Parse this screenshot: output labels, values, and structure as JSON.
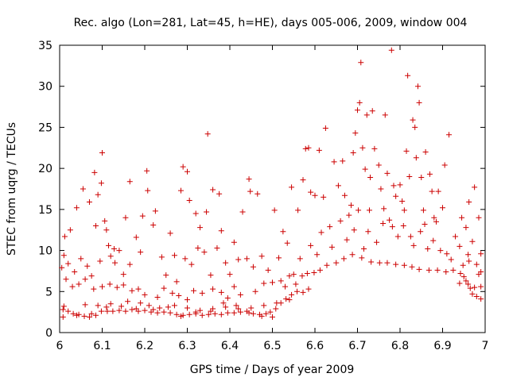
{
  "chart_data": {
    "type": "scatter",
    "title": "Rec. algo (Lon=281, Lat=45, h=HE), days 005-006, 2009, window 004",
    "xlabel": "GPS time / Days of year 2009",
    "ylabel": "STEC from uqrg / TECUs",
    "xlim": [
      6,
      7
    ],
    "ylim": [
      0,
      35
    ],
    "x_ticks": [
      6,
      6.1,
      6.2,
      6.3,
      6.4,
      6.5,
      6.6,
      6.7,
      6.8,
      6.9,
      7
    ],
    "y_ticks": [
      0,
      5,
      10,
      15,
      20,
      25,
      30,
      35
    ],
    "x_tick_labels": [
      "6",
      "6.1",
      "6.2",
      "6.3",
      "6.4",
      "6.5",
      "6.6",
      "6.7",
      "6.8",
      "6.9",
      "7"
    ],
    "y_tick_labels": [
      "0",
      "5",
      "10",
      "15",
      "20",
      "25",
      "30",
      "35"
    ],
    "marker": "plus",
    "marker_color": "#cc0000",
    "grid": false,
    "series": [
      {
        "name": "STEC",
        "points": [
          [
            6.012,
            11.7
          ],
          [
            6.025,
            12.5
          ],
          [
            6.04,
            15.2
          ],
          [
            6.055,
            17.5
          ],
          [
            6.07,
            15.9
          ],
          [
            6.082,
            19.5
          ],
          [
            6.09,
            16.8
          ],
          [
            6.098,
            18.2
          ],
          [
            6.1,
            21.9
          ],
          [
            6.106,
            13.6
          ],
          [
            6.115,
            10.6
          ],
          [
            6.128,
            10.2
          ],
          [
            6.155,
            14.0
          ],
          [
            6.165,
            18.4
          ],
          [
            6.195,
            14.2
          ],
          [
            6.205,
            19.7
          ],
          [
            6.207,
            17.3
          ],
          [
            6.225,
            14.8
          ],
          [
            6.26,
            12.1
          ],
          [
            6.27,
            9.4
          ],
          [
            6.285,
            17.3
          ],
          [
            6.29,
            20.2
          ],
          [
            6.3,
            19.6
          ],
          [
            6.305,
            16.1
          ],
          [
            6.32,
            14.5
          ],
          [
            6.33,
            12.8
          ],
          [
            6.345,
            14.7
          ],
          [
            6.348,
            24.2
          ],
          [
            6.36,
            17.4
          ],
          [
            6.375,
            16.9
          ],
          [
            6.38,
            12.4
          ],
          [
            6.41,
            11.0
          ],
          [
            6.43,
            14.7
          ],
          [
            6.445,
            18.7
          ],
          [
            6.448,
            17.2
          ],
          [
            6.465,
            16.9
          ],
          [
            6.505,
            14.9
          ],
          [
            6.525,
            12.3
          ],
          [
            6.545,
            17.7
          ],
          [
            6.56,
            14.9
          ],
          [
            6.572,
            18.6
          ],
          [
            6.578,
            22.4
          ],
          [
            6.585,
            22.5
          ],
          [
            6.59,
            17.1
          ],
          [
            6.6,
            16.7
          ],
          [
            6.61,
            22.2
          ],
          [
            6.62,
            16.5
          ],
          [
            6.625,
            24.9
          ],
          [
            6.645,
            20.8
          ],
          [
            6.655,
            17.9
          ],
          [
            6.665,
            20.9
          ],
          [
            6.67,
            16.7
          ],
          [
            6.685,
            15.5
          ],
          [
            6.69,
            21.9
          ],
          [
            6.695,
            24.3
          ],
          [
            6.7,
            27.1
          ],
          [
            6.705,
            28.0
          ],
          [
            6.708,
            32.9
          ],
          [
            6.712,
            22.5
          ],
          [
            6.718,
            19.9
          ],
          [
            6.722,
            26.5
          ],
          [
            6.73,
            18.9
          ],
          [
            6.735,
            27.0
          ],
          [
            6.74,
            22.4
          ],
          [
            6.75,
            20.4
          ],
          [
            6.755,
            17.5
          ],
          [
            6.765,
            26.5
          ],
          [
            6.77,
            19.4
          ],
          [
            6.78,
            34.4
          ],
          [
            6.785,
            17.9
          ],
          [
            6.79,
            16.6
          ],
          [
            6.8,
            18.0
          ],
          [
            6.805,
            16.0
          ],
          [
            6.81,
            14.9
          ],
          [
            6.815,
            22.1
          ],
          [
            6.818,
            31.3
          ],
          [
            6.822,
            19.0
          ],
          [
            6.83,
            25.9
          ],
          [
            6.835,
            25.0
          ],
          [
            6.838,
            21.3
          ],
          [
            6.842,
            30.0
          ],
          [
            6.845,
            28.0
          ],
          [
            6.85,
            18.9
          ],
          [
            6.855,
            14.9
          ],
          [
            6.86,
            22.0
          ],
          [
            6.87,
            19.3
          ],
          [
            6.875,
            17.2
          ],
          [
            6.88,
            14.0
          ],
          [
            6.89,
            17.2
          ],
          [
            6.9,
            15.2
          ],
          [
            6.905,
            20.4
          ],
          [
            6.915,
            24.1
          ],
          [
            6.93,
            11.7
          ],
          [
            6.945,
            14.0
          ],
          [
            6.955,
            12.8
          ],
          [
            6.962,
            15.9
          ],
          [
            6.975,
            17.7
          ],
          [
            6.985,
            14.0
          ],
          [
            6.99,
            9.6
          ],
          [
            6.01,
            9.4
          ],
          [
            6.02,
            8.4
          ],
          [
            6.035,
            7.4
          ],
          [
            6.05,
            9.0
          ],
          [
            6.065,
            8.1
          ],
          [
            6.075,
            6.9
          ],
          [
            6.085,
            13.0
          ],
          [
            6.095,
            8.7
          ],
          [
            6.11,
            12.5
          ],
          [
            6.12,
            9.3
          ],
          [
            6.13,
            8.5
          ],
          [
            6.14,
            10.0
          ],
          [
            6.15,
            7.1
          ],
          [
            6.165,
            8.3
          ],
          [
            6.18,
            11.6
          ],
          [
            6.19,
            9.8
          ],
          [
            6.22,
            13.1
          ],
          [
            6.24,
            9.2
          ],
          [
            6.25,
            7.0
          ],
          [
            6.275,
            6.2
          ],
          [
            6.295,
            9.0
          ],
          [
            6.31,
            8.3
          ],
          [
            6.325,
            10.3
          ],
          [
            6.34,
            9.8
          ],
          [
            6.355,
            7.0
          ],
          [
            6.37,
            10.3
          ],
          [
            6.39,
            8.5
          ],
          [
            6.4,
            7.1
          ],
          [
            6.42,
            8.9
          ],
          [
            6.44,
            9.0
          ],
          [
            6.455,
            8.0
          ],
          [
            6.475,
            9.3
          ],
          [
            6.49,
            7.6
          ],
          [
            6.515,
            9.1
          ],
          [
            6.535,
            10.9
          ],
          [
            6.55,
            7.1
          ],
          [
            6.565,
            9.0
          ],
          [
            6.59,
            10.6
          ],
          [
            6.605,
            9.5
          ],
          [
            6.615,
            12.2
          ],
          [
            6.635,
            12.9
          ],
          [
            6.64,
            10.4
          ],
          [
            6.66,
            13.6
          ],
          [
            6.675,
            11.3
          ],
          [
            6.68,
            14.3
          ],
          [
            6.692,
            12.5
          ],
          [
            6.702,
            14.9
          ],
          [
            6.715,
            10.2
          ],
          [
            6.725,
            12.3
          ],
          [
            6.728,
            14.9
          ],
          [
            6.745,
            11.0
          ],
          [
            6.76,
            13.3
          ],
          [
            6.762,
            15.1
          ],
          [
            6.775,
            13.7
          ],
          [
            6.782,
            12.9
          ],
          [
            6.795,
            11.7
          ],
          [
            6.808,
            13.0
          ],
          [
            6.825,
            11.7
          ],
          [
            6.832,
            10.6
          ],
          [
            6.848,
            12.3
          ],
          [
            6.858,
            13.2
          ],
          [
            6.865,
            10.2
          ],
          [
            6.878,
            11.2
          ],
          [
            6.885,
            13.5
          ],
          [
            6.895,
            10.0
          ],
          [
            6.91,
            9.6
          ],
          [
            6.92,
            8.9
          ],
          [
            6.94,
            10.5
          ],
          [
            6.96,
            9.5
          ],
          [
            6.97,
            11.1
          ],
          [
            6.98,
            8.3
          ],
          [
            6.005,
            7.9
          ],
          [
            6.015,
            6.5
          ],
          [
            6.03,
            5.6
          ],
          [
            6.045,
            5.9
          ],
          [
            6.06,
            6.5
          ],
          [
            6.08,
            5.3
          ],
          [
            6.1,
            5.6
          ],
          [
            6.118,
            5.9
          ],
          [
            6.135,
            5.5
          ],
          [
            6.15,
            5.8
          ],
          [
            6.17,
            5.1
          ],
          [
            6.185,
            5.3
          ],
          [
            6.2,
            4.6
          ],
          [
            6.23,
            4.3
          ],
          [
            6.245,
            5.4
          ],
          [
            6.265,
            4.8
          ],
          [
            6.28,
            4.5
          ],
          [
            6.3,
            4.0
          ],
          [
            6.315,
            5.1
          ],
          [
            6.335,
            4.8
          ],
          [
            6.36,
            5.3
          ],
          [
            6.38,
            4.9
          ],
          [
            6.395,
            4.2
          ],
          [
            6.41,
            5.6
          ],
          [
            6.425,
            4.6
          ],
          [
            6.46,
            5.0
          ],
          [
            6.48,
            6.0
          ],
          [
            6.5,
            6.1
          ],
          [
            6.52,
            6.3
          ],
          [
            6.53,
            5.6
          ],
          [
            6.54,
            6.9
          ],
          [
            6.555,
            5.9
          ],
          [
            6.57,
            6.9
          ],
          [
            6.582,
            7.2
          ],
          [
            6.598,
            7.3
          ],
          [
            6.612,
            7.6
          ],
          [
            6.628,
            8.2
          ],
          [
            6.65,
            8.5
          ],
          [
            6.668,
            9.0
          ],
          [
            6.688,
            9.5
          ],
          [
            6.71,
            9.1
          ],
          [
            6.732,
            8.6
          ],
          [
            6.752,
            8.5
          ],
          [
            6.77,
            8.5
          ],
          [
            6.79,
            8.3
          ],
          [
            6.81,
            8.2
          ],
          [
            6.828,
            8.0
          ],
          [
            6.845,
            7.7
          ],
          [
            6.868,
            7.6
          ],
          [
            6.888,
            7.6
          ],
          [
            6.908,
            7.4
          ],
          [
            6.925,
            7.6
          ],
          [
            6.942,
            7.2
          ],
          [
            6.955,
            6.3
          ],
          [
            6.965,
            5.4
          ],
          [
            6.975,
            5.5
          ],
          [
            6.99,
            5.6
          ],
          [
            6.008,
            2.8
          ],
          [
            6.02,
            2.6
          ],
          [
            6.032,
            2.3
          ],
          [
            6.045,
            2.2
          ],
          [
            6.058,
            2.0
          ],
          [
            6.07,
            1.9
          ],
          [
            6.085,
            2.1
          ],
          [
            6.098,
            2.6
          ],
          [
            6.112,
            2.6
          ],
          [
            6.125,
            2.6
          ],
          [
            6.14,
            2.7
          ],
          [
            6.155,
            2.6
          ],
          [
            6.17,
            2.8
          ],
          [
            6.185,
            2.6
          ],
          [
            6.2,
            2.7
          ],
          [
            6.215,
            2.5
          ],
          [
            6.23,
            2.4
          ],
          [
            6.245,
            2.5
          ],
          [
            6.26,
            2.4
          ],
          [
            6.275,
            2.2
          ],
          [
            6.29,
            2.1
          ],
          [
            6.305,
            2.2
          ],
          [
            6.32,
            2.3
          ],
          [
            6.335,
            2.1
          ],
          [
            6.35,
            2.2
          ],
          [
            6.365,
            2.3
          ],
          [
            6.38,
            2.2
          ],
          [
            6.395,
            2.4
          ],
          [
            6.41,
            2.4
          ],
          [
            6.425,
            2.5
          ],
          [
            6.44,
            2.6
          ],
          [
            6.455,
            2.3
          ],
          [
            6.47,
            2.2
          ],
          [
            6.485,
            2.3
          ],
          [
            6.495,
            2.5
          ],
          [
            6.508,
            2.9
          ],
          [
            6.52,
            3.6
          ],
          [
            6.532,
            4.1
          ],
          [
            6.545,
            4.6
          ],
          [
            6.558,
            5.0
          ],
          [
            6.572,
            4.9
          ],
          [
            6.585,
            5.3
          ],
          [
            6.01,
            3.2
          ],
          [
            6.06,
            3.4
          ],
          [
            6.09,
            3.3
          ],
          [
            6.12,
            3.5
          ],
          [
            6.16,
            3.8
          ],
          [
            6.19,
            3.6
          ],
          [
            6.21,
            3.3
          ],
          [
            6.235,
            3.0
          ],
          [
            6.27,
            3.3
          ],
          [
            6.3,
            3.0
          ],
          [
            6.33,
            2.7
          ],
          [
            6.36,
            2.9
          ],
          [
            6.39,
            3.1
          ],
          [
            6.42,
            2.9
          ],
          [
            6.45,
            3.0
          ],
          [
            6.48,
            3.3
          ],
          [
            6.51,
            3.6
          ],
          [
            6.54,
            4.0
          ],
          [
            6.008,
            1.9
          ],
          [
            6.04,
            2.1
          ],
          [
            6.075,
            2.3
          ],
          [
            6.11,
            3.1
          ],
          [
            6.145,
            3.2
          ],
          [
            6.18,
            2.9
          ],
          [
            6.22,
            2.8
          ],
          [
            6.255,
            3.1
          ],
          [
            6.285,
            2.0
          ],
          [
            6.32,
            2.5
          ],
          [
            6.355,
            2.6
          ],
          [
            6.385,
            3.6
          ],
          [
            6.415,
            3.3
          ],
          [
            6.445,
            2.4
          ],
          [
            6.475,
            2.0
          ],
          [
            6.5,
            1.9
          ],
          [
            6.94,
            6.0
          ],
          [
            6.95,
            6.8
          ],
          [
            6.96,
            5.9
          ],
          [
            6.97,
            4.7
          ],
          [
            6.98,
            4.4
          ],
          [
            6.99,
            4.1
          ],
          [
            6.985,
            7.1
          ],
          [
            6.99,
            7.4
          ],
          [
            6.962,
            8.7
          ],
          [
            6.948,
            8.2
          ]
        ]
      }
    ]
  }
}
